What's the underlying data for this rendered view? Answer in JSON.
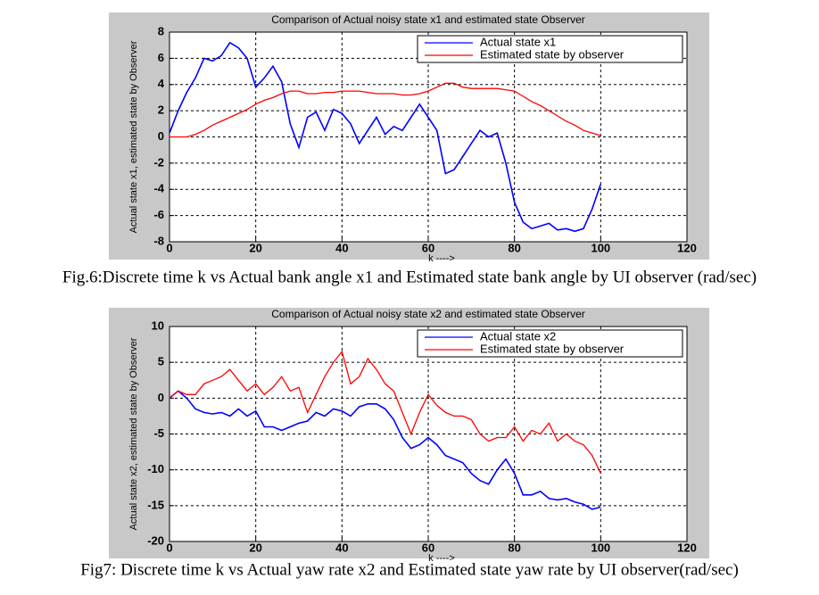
{
  "chart_data": [
    {
      "type": "line",
      "title": "Comparison of Actual noisy state x1 and estimated state  Observer",
      "x_label": "k ---->",
      "y_label": "Actual state x1, estimated state by Observer",
      "caption": "Fig.6:Discrete time k vs Actual bank angle x1 and Estimated state bank angle by UI observer (rad/sec)",
      "x": [
        0,
        2,
        4,
        6,
        8,
        10,
        12,
        14,
        16,
        18,
        20,
        22,
        24,
        26,
        28,
        30,
        32,
        34,
        36,
        38,
        40,
        42,
        44,
        46,
        48,
        50,
        52,
        54,
        56,
        58,
        60,
        62,
        64,
        66,
        68,
        70,
        72,
        74,
        76,
        78,
        80,
        82,
        84,
        86,
        88,
        90,
        92,
        94,
        96,
        98,
        100
      ],
      "series": [
        {
          "name": "Actual state x1",
          "color": "#0000ff",
          "values": [
            0.3,
            2,
            3.4,
            4.5,
            6,
            5.8,
            6.2,
            7.2,
            6.8,
            6,
            3.8,
            4.5,
            5.4,
            4.2,
            1,
            -0.8,
            1.5,
            1.9,
            0.5,
            2.1,
            1.8,
            1,
            -0.5,
            0.5,
            1.5,
            0.2,
            0.8,
            0.5,
            1.5,
            2.5,
            1.5,
            0.5,
            -2.8,
            -2.5,
            -1.5,
            -0.5,
            0.5,
            0,
            0.3,
            -2,
            -5,
            -6.5,
            -7,
            -6.8,
            -6.6,
            -7.1,
            -7,
            -7.2,
            -7,
            -5.5,
            -3.6
          ]
        },
        {
          "name": "Estimated state by observer",
          "color": "#ff0000",
          "values": [
            0,
            0,
            0,
            0.2,
            0.5,
            0.9,
            1.2,
            1.5,
            1.8,
            2.1,
            2.5,
            2.8,
            3,
            3.3,
            3.5,
            3.5,
            3.3,
            3.3,
            3.4,
            3.4,
            3.5,
            3.5,
            3.5,
            3.4,
            3.3,
            3.3,
            3.3,
            3.2,
            3.2,
            3.3,
            3.5,
            3.8,
            4.1,
            4.1,
            3.8,
            3.7,
            3.7,
            3.7,
            3.7,
            3.6,
            3.5,
            3.1,
            2.7,
            2.4,
            2,
            1.6,
            1.2,
            0.9,
            0.5,
            0.3,
            0.1
          ]
        }
      ],
      "xlim": [
        0,
        120
      ],
      "xticks": [
        0,
        20,
        40,
        60,
        80,
        100,
        120
      ],
      "ylim": [
        -8,
        8
      ],
      "yticks": [
        -8,
        -6,
        -4,
        -2,
        0,
        2,
        4,
        6,
        8
      ],
      "grid": true,
      "legend": "upper right"
    },
    {
      "type": "line",
      "title": "Comparison of Actual noisy state x2 and estimated state  Observer",
      "x_label": "k ---->",
      "y_label": "Actual state x2, estimated state by Observer",
      "caption": "Fig7: Discrete time k vs Actual  yaw rate x2 and Estimated state yaw rate by UI observer(rad/sec)",
      "x": [
        0,
        2,
        4,
        6,
        8,
        10,
        12,
        14,
        16,
        18,
        20,
        22,
        24,
        26,
        28,
        30,
        32,
        34,
        36,
        38,
        40,
        42,
        44,
        46,
        48,
        50,
        52,
        54,
        56,
        58,
        60,
        62,
        64,
        66,
        68,
        70,
        72,
        74,
        76,
        78,
        80,
        82,
        84,
        86,
        88,
        90,
        92,
        94,
        96,
        98,
        100
      ],
      "series": [
        {
          "name": "Actual state x2",
          "color": "#0000ff",
          "values": [
            0,
            1,
            0,
            -1.5,
            -2,
            -2.2,
            -2,
            -2.5,
            -1.5,
            -2.5,
            -1.8,
            -4,
            -4,
            -4.5,
            -4,
            -3.5,
            -3.2,
            -2,
            -2.5,
            -1.5,
            -1.8,
            -2.5,
            -1.2,
            -0.8,
            -0.8,
            -1.5,
            -3,
            -5.5,
            -7,
            -6.5,
            -5.5,
            -6.5,
            -8,
            -8.5,
            -9,
            -10.5,
            -11.5,
            -12,
            -10,
            -8.5,
            -10.5,
            -13.5,
            -13.5,
            -13,
            -14,
            -14.2,
            -14,
            -14.5,
            -14.8,
            -15.5,
            -15.2
          ]
        },
        {
          "name": "Estimated state by observer",
          "color": "#ff0000",
          "values": [
            0,
            1,
            0.5,
            0.5,
            2,
            2.5,
            3,
            4,
            2.5,
            1,
            2,
            0.5,
            1.5,
            3,
            1,
            1.5,
            -2,
            0.5,
            3,
            5,
            6.5,
            2,
            3,
            5.5,
            4,
            2,
            1,
            -2,
            -5,
            -2,
            0.5,
            -1,
            -2,
            -2.5,
            -2.5,
            -3,
            -5,
            -6,
            -5.5,
            -5.5,
            -4,
            -6,
            -4.5,
            -5,
            -3.5,
            -6,
            -5,
            -6,
            -6.5,
            -8,
            -10.5
          ]
        }
      ],
      "xlim": [
        0,
        120
      ],
      "xticks": [
        0,
        20,
        40,
        60,
        80,
        100,
        120
      ],
      "ylim": [
        -20,
        10
      ],
      "yticks": [
        -20,
        -15,
        -10,
        -5,
        0,
        5,
        10
      ],
      "grid": true,
      "legend": "upper right"
    }
  ]
}
